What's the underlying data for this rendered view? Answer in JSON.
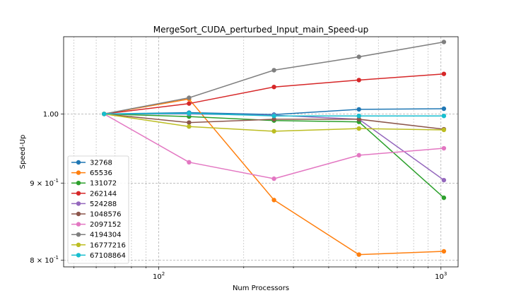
{
  "chart_data": {
    "type": "line",
    "title": "MergeSort_CUDA_perturbed_Input_main_Speed-up",
    "xlabel": "Num Processors",
    "ylabel": "Speed-Up",
    "xscale": "log",
    "yscale": "log",
    "xlim": [
      46,
      1150
    ],
    "ylim": [
      0.792,
      1.125
    ],
    "grid": true,
    "legend_position": "lower-left",
    "x": [
      64,
      128,
      256,
      512,
      1024
    ],
    "x_ticks": [
      {
        "value": 100,
        "label": "10^2"
      },
      {
        "value": 1000,
        "label": "10^3"
      }
    ],
    "y_ticks": [
      {
        "value": 1.0,
        "label": "1.00"
      },
      {
        "value": 0.9,
        "label": "9 × 10^-1"
      },
      {
        "value": 0.8,
        "label": "8 × 10^-1"
      }
    ],
    "series": [
      {
        "name": "32768",
        "color": "#1f77b4",
        "values": [
          1.0,
          1.002,
          0.999,
          1.007,
          1.008
        ]
      },
      {
        "name": "65536",
        "color": "#ff7f0e",
        "values": [
          1.0,
          1.023,
          0.877,
          0.807,
          0.811
        ]
      },
      {
        "name": "131072",
        "color": "#2ca02c",
        "values": [
          1.0,
          0.996,
          0.99,
          0.988,
          0.88
        ]
      },
      {
        "name": "262144",
        "color": "#d62728",
        "values": [
          1.0,
          1.016,
          1.042,
          1.053,
          1.063
        ]
      },
      {
        "name": "524288",
        "color": "#9467bd",
        "values": [
          1.0,
          1.0,
          0.998,
          0.992,
          0.904
        ]
      },
      {
        "name": "1048576",
        "color": "#8c564b",
        "values": [
          1.0,
          0.987,
          0.992,
          0.992,
          0.977
        ]
      },
      {
        "name": "2097152",
        "color": "#e377c2",
        "values": [
          1.0,
          0.929,
          0.906,
          0.939,
          0.949
        ]
      },
      {
        "name": "4194304",
        "color": "#7f7f7f",
        "values": [
          1.0,
          1.025,
          1.069,
          1.091,
          1.116
        ]
      },
      {
        "name": "16777216",
        "color": "#bcbd22",
        "values": [
          1.0,
          0.981,
          0.974,
          0.978,
          0.976
        ]
      },
      {
        "name": "67108864",
        "color": "#17becf",
        "values": [
          1.0,
          1.001,
          0.997,
          0.997,
          0.997
        ]
      }
    ]
  }
}
